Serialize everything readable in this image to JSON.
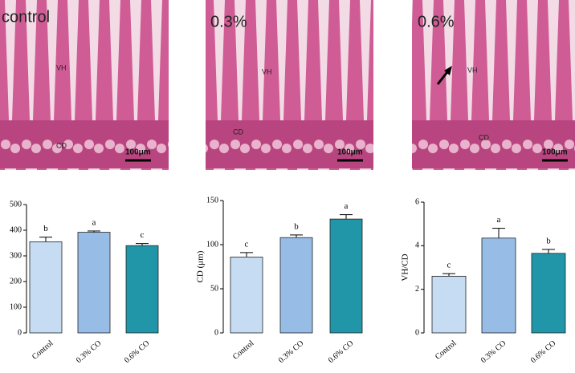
{
  "images": [
    {
      "label": "control",
      "vh": "VH",
      "cd": "CD",
      "scale": "100μm"
    },
    {
      "label": "0.3%",
      "vh": "VH",
      "cd": "CD",
      "scale": "100μm"
    },
    {
      "label": "0.6%",
      "vh": "VH",
      "cd": "CD",
      "scale": "100μm"
    }
  ],
  "chart_data": [
    {
      "type": "bar",
      "categories": [
        "Control",
        "0.3% CO",
        "0.6% CO"
      ],
      "values": [
        355,
        392,
        340
      ],
      "errors": [
        18,
        5,
        8
      ],
      "annotations": [
        "b",
        "a",
        "c"
      ],
      "colors": [
        "#c6dcf2",
        "#97bde6",
        "#2196a8"
      ],
      "ylim": [
        0,
        500
      ],
      "yticks": [
        0,
        100,
        200,
        300,
        400,
        500
      ]
    },
    {
      "type": "bar",
      "ylabel": "CD (μm)",
      "categories": [
        "Control",
        "0.3% CO",
        "0.6% CO"
      ],
      "values": [
        86,
        108,
        129
      ],
      "errors": [
        5,
        3,
        5
      ],
      "annotations": [
        "c",
        "b",
        "a"
      ],
      "colors": [
        "#c6dcf2",
        "#97bde6",
        "#2196a8"
      ],
      "ylim": [
        0,
        150
      ],
      "yticks": [
        0,
        50,
        100,
        150
      ]
    },
    {
      "type": "bar",
      "ylabel": "VH/CD",
      "categories": [
        "Control",
        "0.3% CO",
        "0.6% CO"
      ],
      "values": [
        2.6,
        4.35,
        3.65
      ],
      "errors": [
        0.12,
        0.45,
        0.18
      ],
      "annotations": [
        "c",
        "a",
        "b"
      ],
      "colors": [
        "#c6dcf2",
        "#97bde6",
        "#2196a8"
      ],
      "ylim": [
        0,
        6
      ],
      "yticks": [
        0,
        2,
        4,
        6
      ]
    }
  ]
}
